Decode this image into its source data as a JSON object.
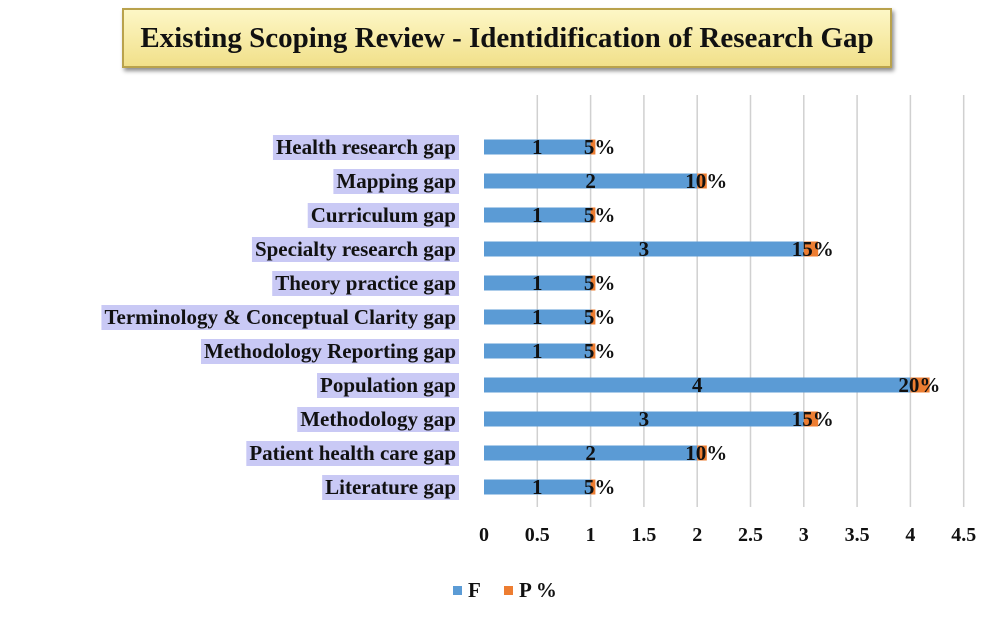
{
  "chart_data": {
    "type": "bar",
    "orientation": "horizontal",
    "title": "Existing Scoping Review - Identidification of Research Gap",
    "categories": [
      "Health research gap",
      "Mapping gap",
      "Curriculum gap",
      "Specialty research gap",
      "Theory practice gap",
      "Terminology & Conceptual Clarity gap",
      "Methodology Reporting gap",
      "Population gap",
      "Methodology gap",
      "Patient health care gap",
      "Literature gap"
    ],
    "series": [
      {
        "name": "F",
        "values": [
          1,
          2,
          1,
          3,
          1,
          1,
          1,
          4,
          3,
          2,
          1
        ],
        "color": "#5b9bd5"
      },
      {
        "name": "P %",
        "values": [
          5,
          10,
          5,
          15,
          5,
          5,
          5,
          20,
          15,
          10,
          5
        ],
        "color": "#ed7d31"
      }
    ],
    "percent_labels": [
      "5%",
      "10%",
      "5%",
      "15%",
      "5%",
      "5%",
      "5%",
      "20%",
      "15%",
      "10%",
      "5%"
    ],
    "xlim": [
      0,
      4.5
    ],
    "xticks": [
      "0",
      "0.5",
      "1",
      "1.5",
      "2",
      "2.5",
      "3",
      "3.5",
      "4",
      "4.5"
    ],
    "grid": "vertical",
    "legend": "bottom-center",
    "category_label_bg": "#c9c9f5",
    "gridline_color": "#d0d0d0"
  }
}
